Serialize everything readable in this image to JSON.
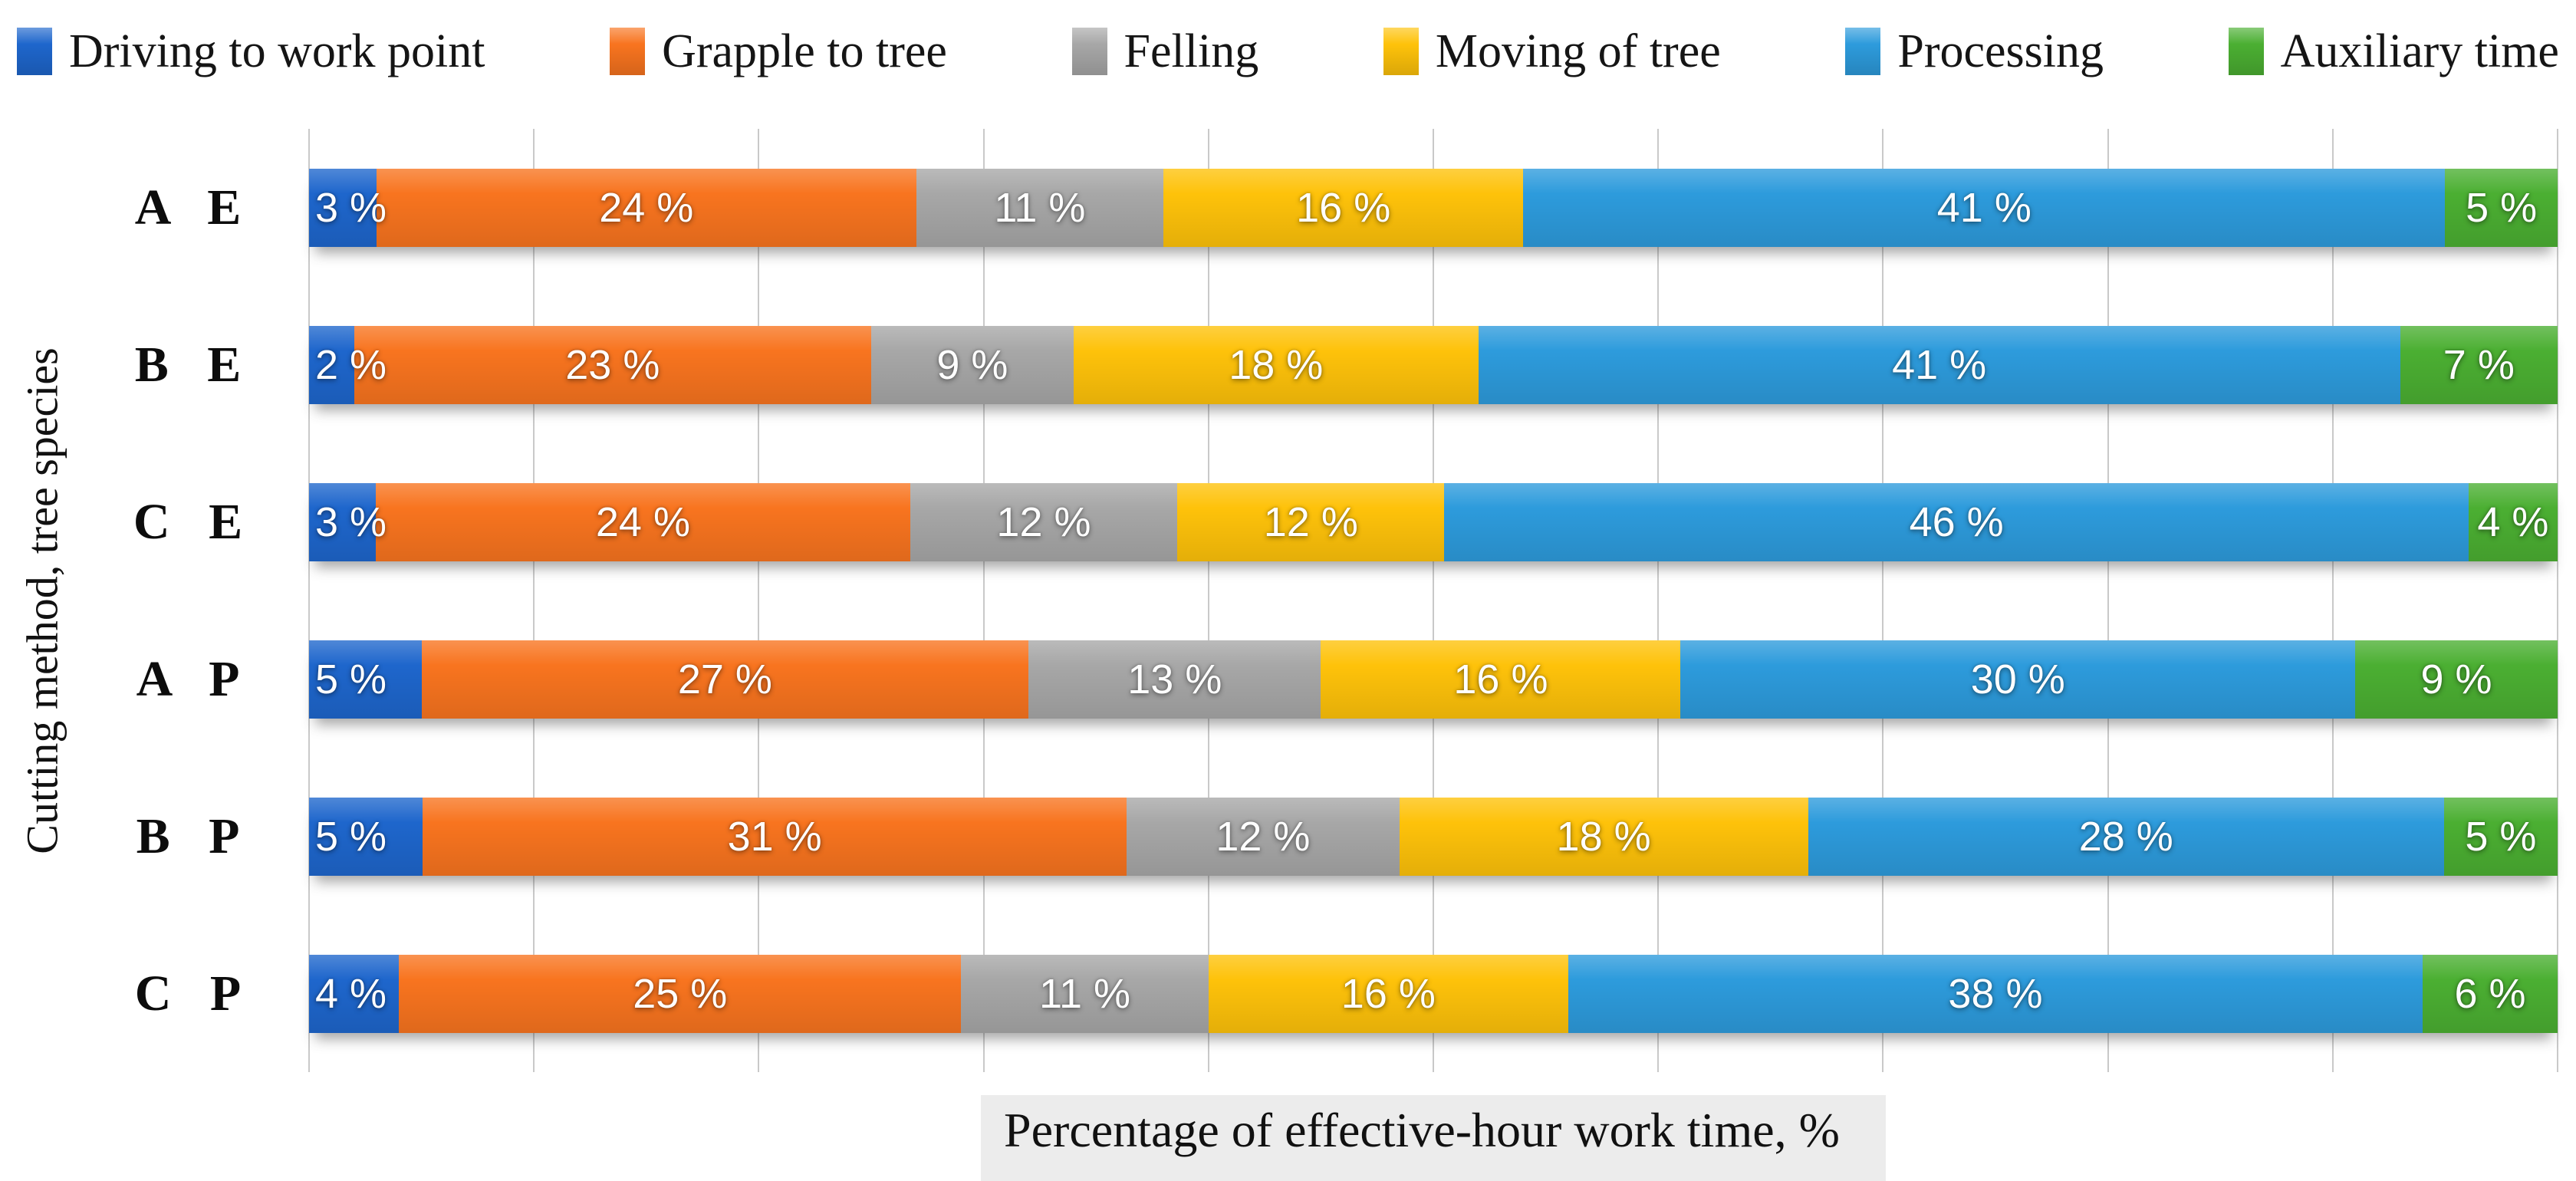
{
  "chart_data": {
    "type": "bar",
    "variant": "horizontal-100%-stacked",
    "title": "",
    "xlabel": "Percentage of effective-hour work time, %",
    "ylabel": "Cutting method, tree species",
    "xlim": [
      0,
      100
    ],
    "grid": "vertical gridlines every 10%",
    "legend_position": "top",
    "label_format": "{value} %",
    "background_color": "#ffffff",
    "gridline_color": "#c9c9c9",
    "categories": [
      "A E",
      "B E",
      "C E",
      "A P",
      "B P",
      "C P"
    ],
    "series": [
      {
        "name": "Driving to work point",
        "color": "#1e66cc",
        "values": [
          3,
          2,
          3,
          5,
          5,
          4
        ]
      },
      {
        "name": "Grapple to tree",
        "color": "#f8741f",
        "values": [
          24,
          23,
          24,
          27,
          31,
          25
        ]
      },
      {
        "name": "Felling",
        "color": "#a7a7a7",
        "values": [
          11,
          9,
          12,
          13,
          12,
          11
        ]
      },
      {
        "name": "Moving of tree",
        "color": "#fec20a",
        "values": [
          16,
          18,
          12,
          16,
          18,
          16
        ]
      },
      {
        "name": "Processing",
        "color": "#2d9bdc",
        "values": [
          41,
          41,
          46,
          30,
          28,
          38
        ]
      },
      {
        "name": "Auxiliary time",
        "color": "#4baf32",
        "values": [
          5,
          7,
          4,
          9,
          5,
          6
        ]
      }
    ]
  }
}
